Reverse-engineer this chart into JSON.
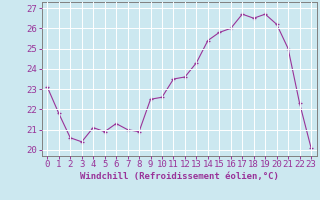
{
  "x": [
    0,
    1,
    2,
    3,
    4,
    5,
    6,
    7,
    8,
    9,
    10,
    11,
    12,
    13,
    14,
    15,
    16,
    17,
    18,
    19,
    20,
    21,
    22,
    23
  ],
  "y": [
    23.1,
    21.8,
    20.6,
    20.4,
    21.1,
    20.9,
    21.3,
    21.0,
    20.9,
    22.5,
    22.6,
    23.5,
    23.6,
    24.3,
    25.4,
    25.8,
    26.0,
    26.7,
    26.5,
    26.7,
    26.2,
    25.0,
    22.3,
    20.1
  ],
  "line_color": "#993399",
  "marker": "+",
  "bg_color": "#cce8f0",
  "grid_color": "#ffffff",
  "xlabel": "Windchill (Refroidissement éolien,°C)",
  "ylabel_ticks": [
    20,
    21,
    22,
    23,
    24,
    25,
    26,
    27
  ],
  "xtick_labels": [
    "0",
    "1",
    "2",
    "3",
    "4",
    "5",
    "6",
    "7",
    "8",
    "9",
    "10",
    "11",
    "12",
    "13",
    "14",
    "15",
    "16",
    "17",
    "18",
    "19",
    "20",
    "21",
    "22",
    "23"
  ],
  "ylim": [
    19.7,
    27.3
  ],
  "xlim": [
    -0.5,
    23.5
  ],
  "tick_color": "#993399",
  "xlabel_color": "#993399",
  "xlabel_fontsize": 6.5,
  "tick_fontsize": 6.5
}
